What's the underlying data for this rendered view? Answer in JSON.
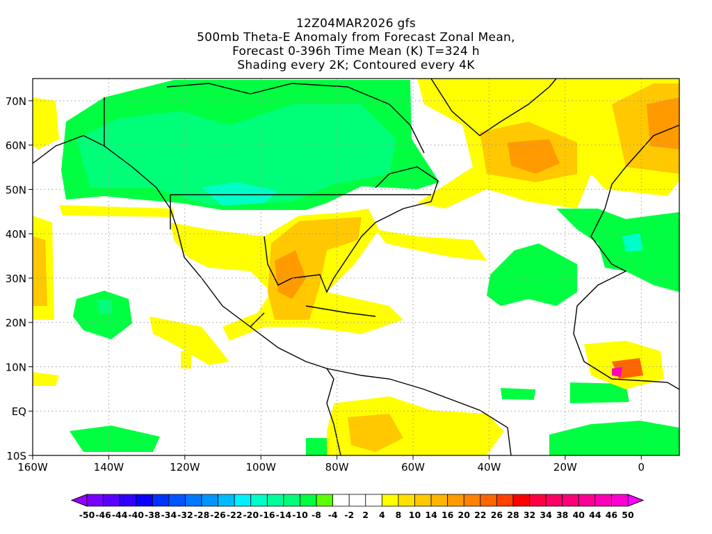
{
  "title": {
    "lines": [
      "12Z04MAR2026 gfs",
      "500mb Theta-E Anomaly from Forecast Zonal Mean,",
      "Forecast 0-396h Time Mean (K) T=324 h",
      "Shading every 2K; Contoured every 4K"
    ]
  },
  "axes": {
    "lon_ticks": [
      {
        "label": "160W",
        "lon": -160
      },
      {
        "label": "140W",
        "lon": -140
      },
      {
        "label": "120W",
        "lon": -120
      },
      {
        "label": "100W",
        "lon": -100
      },
      {
        "label": "80W",
        "lon": -80
      },
      {
        "label": "60W",
        "lon": -60
      },
      {
        "label": "40W",
        "lon": -40
      },
      {
        "label": "20W",
        "lon": -20
      },
      {
        "label": "0",
        "lon": 0
      }
    ],
    "lat_ticks": [
      {
        "label": "70N",
        "lat": 70
      },
      {
        "label": "60N",
        "lat": 60
      },
      {
        "label": "50N",
        "lat": 50
      },
      {
        "label": "40N",
        "lat": 40
      },
      {
        "label": "30N",
        "lat": 30
      },
      {
        "label": "20N",
        "lat": 20
      },
      {
        "label": "10N",
        "lat": 10
      },
      {
        "label": "EQ",
        "lat": 0
      },
      {
        "label": "10S",
        "lat": -10
      }
    ],
    "lon_range": [
      -160,
      10
    ],
    "lat_range": [
      -10,
      75
    ]
  },
  "colorbar": {
    "labels": [
      "-50",
      "-46",
      "-44",
      "-40",
      "-38",
      "-34",
      "-32",
      "-28",
      "-26",
      "-22",
      "-20",
      "-16",
      "-14",
      "-10",
      "-8",
      "-4",
      "-2",
      "2",
      "4",
      "8",
      "10",
      "14",
      "16",
      "20",
      "22",
      "26",
      "28",
      "32",
      "34",
      "38",
      "40",
      "44",
      "46",
      "50"
    ],
    "colors": [
      "#7800ff",
      "#5a00ff",
      "#3200ff",
      "#0a00ff",
      "#0032ff",
      "#0055ff",
      "#0078ff",
      "#0096ff",
      "#00bbff",
      "#00f0ff",
      "#00ffc8",
      "#00ff9b",
      "#00ff78",
      "#00ff41",
      "#5aff00",
      "#ffffff",
      "#ffffff",
      "#ffffff",
      "#ffff00",
      "#ffe100",
      "#ffc800",
      "#ffb400",
      "#ff9b00",
      "#ff8200",
      "#ff6400",
      "#ff4100",
      "#ff0000",
      "#ff0041",
      "#ff0064",
      "#ff0078",
      "#ff0096",
      "#ff00b4",
      "#ff00d2"
    ],
    "low_color": "#9600ff",
    "high_color": "#ff00ff"
  }
}
